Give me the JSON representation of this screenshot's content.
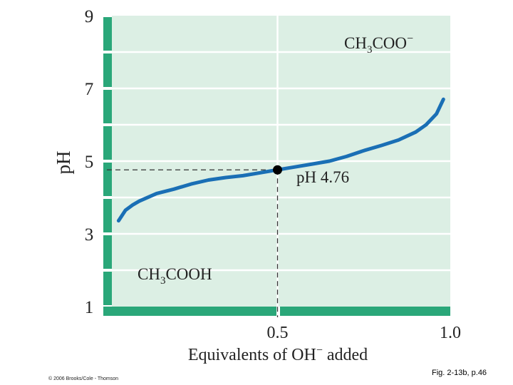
{
  "chart_data": {
    "type": "line",
    "xlabel_prefix": "Equivalents of OH",
    "xlabel_sup": "−",
    "xlabel_suffix": " added",
    "ylabel": "pH",
    "xlim": [
      0,
      1.0
    ],
    "ylim": [
      1,
      9
    ],
    "x_tick_labels": [
      "0.5",
      "1.0"
    ],
    "y_tick_labels": [
      "1",
      "3",
      "5",
      "7",
      "9"
    ],
    "grid": true,
    "series": [
      {
        "x": [
          0.04,
          0.06,
          0.08,
          0.1,
          0.15,
          0.2,
          0.25,
          0.3,
          0.35,
          0.4,
          0.45,
          0.5,
          0.55,
          0.6,
          0.65,
          0.7,
          0.75,
          0.8,
          0.85,
          0.9,
          0.93,
          0.96,
          0.98
        ],
        "y": [
          3.36,
          3.65,
          3.79,
          3.9,
          4.11,
          4.23,
          4.37,
          4.48,
          4.55,
          4.6,
          4.68,
          4.76,
          4.84,
          4.92,
          5.0,
          5.13,
          5.29,
          5.43,
          5.58,
          5.8,
          6.0,
          6.3,
          6.7
        ],
        "color": "#1a6fb5"
      }
    ],
    "annotations": {
      "point": {
        "x": 0.5,
        "y": 4.76,
        "label": "pH 4.76"
      },
      "upper_species": {
        "base": "CH",
        "sub": "3",
        "rest": "COO",
        "sup": "−"
      },
      "lower_species": {
        "base": "CH",
        "sub": "3",
        "rest": "COOH"
      }
    },
    "colors": {
      "plot_bg": "#dcefe4",
      "axis_bar": "#2aa779",
      "grid": "#ffffff",
      "curve": "#1a6fb5"
    }
  },
  "footer": {
    "copyright": "© 2006 Brooks/Cole - Thomson",
    "figure_ref": "Fig. 2-13b, p.46"
  }
}
